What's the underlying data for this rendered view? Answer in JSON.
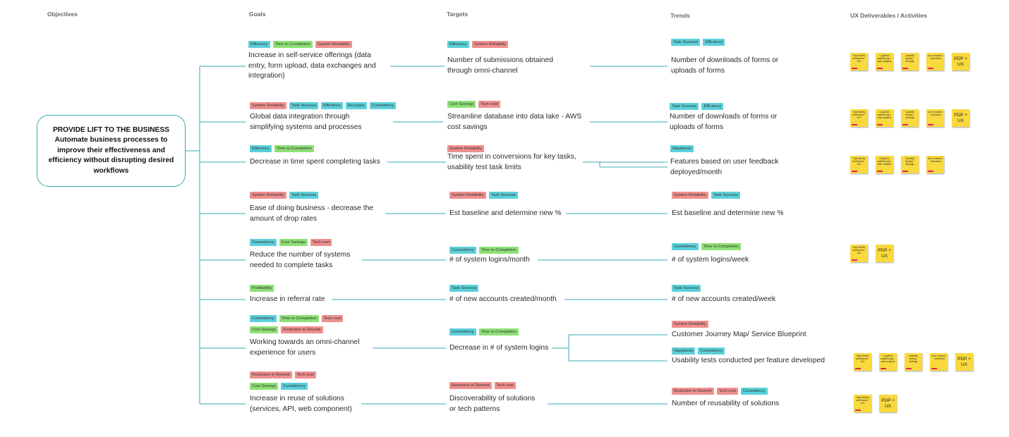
{
  "headers": {
    "objectives": "Objectives",
    "goals": "Goals",
    "targets": "Targets",
    "trends": "Trends",
    "ux": "UX Deliverables / Activities"
  },
  "objective": {
    "title": "PROVIDE LIFT TO THE BUSINESS",
    "text": "Automate business processes to improve their effectiveness and efficiency without disrupting desired workflows"
  },
  "tag_colors": {
    "Efficiency": "#5bd0da",
    "Time to Completion": "#8ee076",
    "System Reliability": "#f08f8f",
    "Task Success": "#5bd0da",
    "Accuracy": "#5bd0da",
    "Consistency": "#5bd0da",
    "Cost Savings": "#8ee076",
    "Tech cost": "#f08f8f",
    "Happiness": "#5bd0da",
    "Profitability": "#8ee076",
    "Reduction in Rework": "#f08f8f"
  },
  "rows": [
    {
      "goal": {
        "tags": [
          [
            "Efficiency",
            "Time to Completion",
            "System Reliability"
          ]
        ],
        "text": "Increase in self-service offerings (data\nentry, form upload, data exchanges and\nintegration)"
      },
      "target": {
        "tags": [
          [
            "Efficiency",
            "System Reliability"
          ]
        ],
        "text": "Number of submissions obtained\nthrough omni-channel"
      },
      "trends": [
        {
          "tags": [
            [
              "Task Success",
              "Efficiency"
            ]
          ],
          "text": "Number of downloads of forms or\nuploads of forms"
        }
      ],
      "notes": [
        "High fidelity wireframes · UIX",
        "Cognitive walkthrough · task analysis",
        "Usability testing · findings",
        "User research · interviews",
        "PDP +\nUX"
      ]
    },
    {
      "goal": {
        "tags": [
          [
            "System Reliability",
            "Task Success",
            "Efficiency",
            "Accuracy",
            "Consistency"
          ]
        ],
        "text": "Global data integration through\nsimplifying systems and processes"
      },
      "target": {
        "tags": [
          [
            "Cost Savings",
            "Tech cost"
          ]
        ],
        "text": "Streamline database into data lake - AWS\ncost savings"
      },
      "trends": [
        {
          "tags": [
            [
              "Task Success",
              "Efficiency"
            ]
          ],
          "text": "Number of downloads of forms or\nuploads of forms"
        }
      ],
      "notes": [
        "High fidelity wireframes · UIX",
        "Cognitive walkthrough · task analysis",
        "Usability testing · findings",
        "User research · interviews",
        "PDP +\nUX"
      ]
    },
    {
      "goal": {
        "tags": [
          [
            "Efficiency",
            "Time to Completion"
          ]
        ],
        "text": "Decrease in time spent completing tasks"
      },
      "target": {
        "tags": [
          [
            "System Reliability"
          ]
        ],
        "text": "Time spent in conversions for key tasks,\nusability test task limits"
      },
      "trends": [
        {
          "tags": [
            [
              "Happiness"
            ]
          ],
          "text": "Features based on user feedback\ndeployed/month"
        }
      ],
      "notes": [
        "High fidelity wireframes · UIX",
        "Cognitive walkthrough · task analysis",
        "Usability testing · findings",
        "User research · interviews"
      ]
    },
    {
      "goal": {
        "tags": [
          [
            "System Reliability",
            "Task Success"
          ]
        ],
        "text": "Ease of doing business - decrease the\namount of drop rates"
      },
      "target": {
        "tags": [
          [
            "System Reliability",
            "Task Success"
          ]
        ],
        "text": "Est baseline and determine new %"
      },
      "trends": [
        {
          "tags": [
            [
              "System Reliability",
              "Task Success"
            ]
          ],
          "text": "Est baseline and determine new %"
        }
      ],
      "notes": []
    },
    {
      "goal": {
        "tags": [
          [
            "Consistency",
            "Cost Savings",
            "Tech cost"
          ]
        ],
        "text": "Reduce the number of systems\nneeded to complete tasks"
      },
      "target": {
        "tags": [
          [
            "Consistency",
            "Time to Completion"
          ]
        ],
        "text": "# of system logins/month"
      },
      "trends": [
        {
          "tags": [
            [
              "Consistency",
              "Time to Completion"
            ]
          ],
          "text": "# of system logins/week"
        }
      ],
      "notes": [
        "High fidelity wireframes · UIX",
        "PDP +\nUX"
      ]
    },
    {
      "goal": {
        "tags": [
          [
            "Profitability"
          ]
        ],
        "text": "Increase in referral rate"
      },
      "target": {
        "tags": [
          [
            "Task Success"
          ]
        ],
        "text": "# of new accounts created/month"
      },
      "trends": [
        {
          "tags": [
            [
              "Task Success"
            ]
          ],
          "text": "# of new accounts created/week"
        }
      ],
      "notes": []
    },
    {
      "goal": {
        "tags": [
          [
            "Consistency",
            "Time to Completion",
            "Tech cost"
          ],
          [
            "Cost Savings",
            "Reduction in Rework"
          ]
        ],
        "text": "Working towards an omni-channel\nexperience for users"
      },
      "target": {
        "tags": [
          [
            "Consistency",
            "Time to Completion"
          ]
        ],
        "text": "Decrease in # of system logins"
      },
      "trends": [
        {
          "tags": [
            [
              "System Reliability"
            ]
          ],
          "text": "Customer Journey Map/ Service Blueprint"
        },
        {
          "tags": [
            [
              "Happiness",
              "Consistency"
            ]
          ],
          "text": "Usability tests conducted per feature developed"
        }
      ],
      "notes": [
        "High fidelity wireframes · UIX",
        "Cognitive walkthrough · task analysis",
        "Usability testing · findings",
        "User research · interviews",
        "PDP +\nUX"
      ]
    },
    {
      "goal": {
        "tags": [
          [
            "Reduction in Rework",
            "Tech cost"
          ],
          [
            "Cost Savings",
            "Consistency"
          ]
        ],
        "text": "Increase in reuse of solutions\n(services, API, web component)"
      },
      "target": {
        "tags": [
          [
            "Reduction in Rework",
            "Tech cost"
          ]
        ],
        "text": "Discoverability of solutions\nor tech patterns"
      },
      "trends": [
        {
          "tags": [
            [
              "Reduction in Rework",
              "Tech cost",
              "Consistency"
            ]
          ],
          "text": "Number of reusability of solutions"
        }
      ],
      "notes": [
        "High fidelity wireframes · UIX",
        "PDP +\nUX"
      ]
    }
  ]
}
